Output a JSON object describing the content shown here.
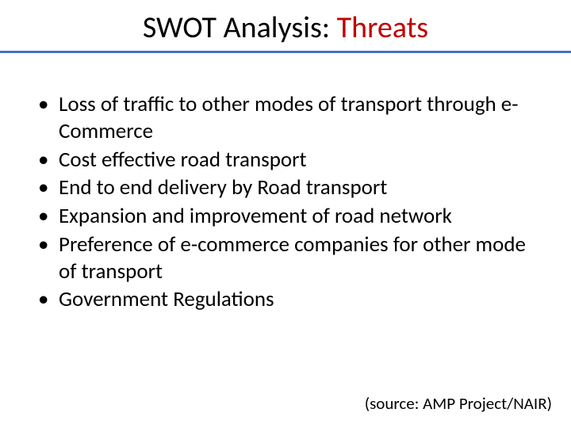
{
  "title": {
    "prefix": "SWOT Analysis: ",
    "highlight": "Threats",
    "highlight_color": "#c00000",
    "prefix_color": "#000000",
    "fontsize": 38
  },
  "underline_color": "#4472c4",
  "bullets": [
    "Loss of traffic to other modes of transport through e-Commerce",
    "Cost effective road transport",
    "End to end delivery by Road transport",
    "Expansion and improvement of road network",
    "Preference of e-commerce companies for other mode of transport",
    "Government Regulations"
  ],
  "bullet_fontsize": 27,
  "bullet_color": "#000000",
  "source": "(source: AMP Project/NAIR)",
  "source_fontsize": 21,
  "background_color": "#ffffff"
}
